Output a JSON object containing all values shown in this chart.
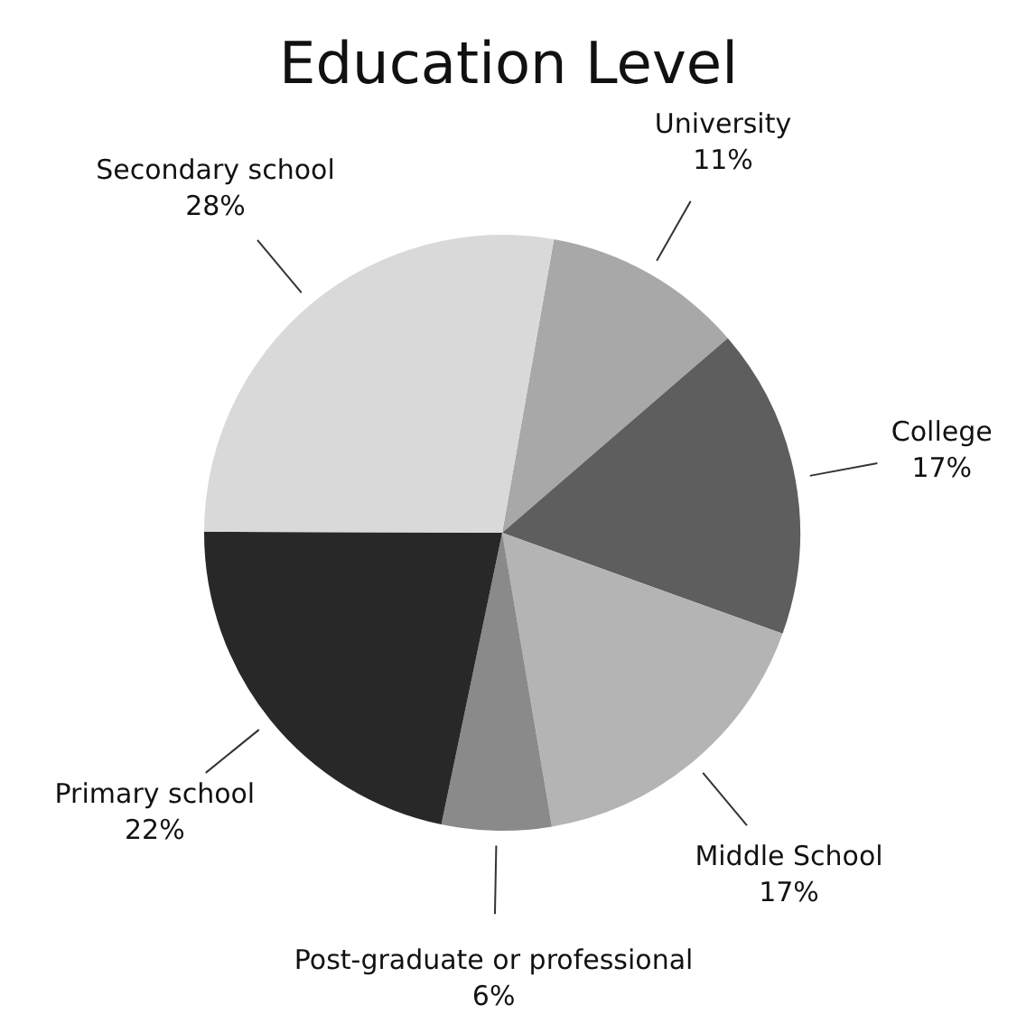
{
  "chart_data": {
    "type": "pie",
    "title": "Education Level",
    "categories": [
      "University",
      "College",
      "Middle School",
      "Post-graduate or professional",
      "Primary school",
      "Secondary school"
    ],
    "values": [
      11,
      17,
      17,
      6,
      22,
      28
    ],
    "value_labels": [
      "11%",
      "17%",
      "17%",
      "6%",
      "22%",
      "28%"
    ],
    "colors": [
      "#a8a8a8",
      "#5e5e5e",
      "#b4b4b4",
      "#8a8a8a",
      "#282828",
      "#d9d9d9"
    ],
    "legend": false
  }
}
